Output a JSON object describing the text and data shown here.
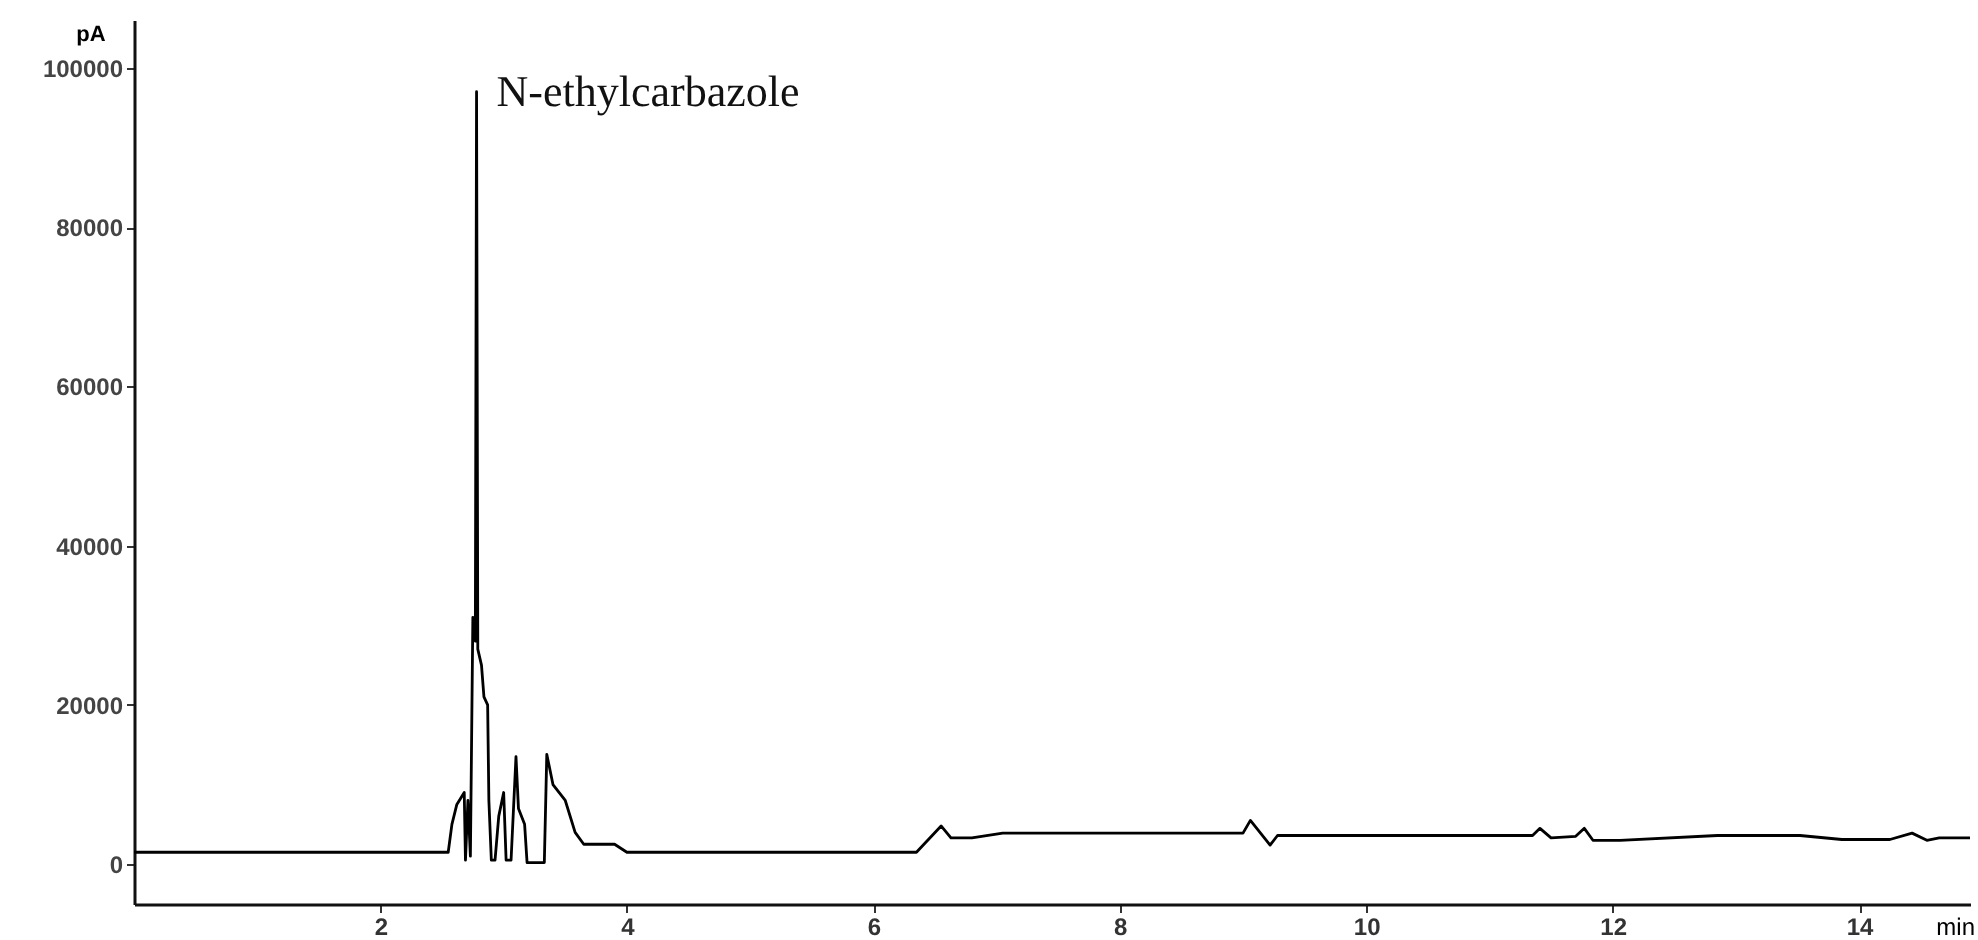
{
  "chart_data": {
    "type": "line",
    "xlabel": "min",
    "ylabel": "pA",
    "x": [
      0,
      2.55,
      2.58,
      2.62,
      2.66,
      2.68,
      2.69,
      2.71,
      2.73,
      2.75,
      2.77,
      2.78,
      2.79,
      2.82,
      2.84,
      2.87,
      2.88,
      2.9,
      2.93,
      2.96,
      3.0,
      3.02,
      3.06,
      3.1,
      3.12,
      3.17,
      3.19,
      3.33,
      3.35,
      3.4,
      3.5,
      3.58,
      3.65,
      3.9,
      4.0,
      6.35,
      6.55,
      6.63,
      6.8,
      7.05,
      9.0,
      9.06,
      9.22,
      9.28,
      11.35,
      11.41,
      11.5,
      11.7,
      11.77,
      11.84,
      12.06,
      12.85,
      13.52,
      13.86,
      14.25,
      14.43,
      14.55,
      14.65,
      14.9
    ],
    "series": [
      {
        "color": "#000000",
        "values": [
          1500,
          1500,
          5000,
          7500,
          8500,
          9000,
          500,
          8000,
          1000,
          31000,
          28000,
          97000,
          27000,
          25000,
          21000,
          20000,
          8000,
          500,
          500,
          6000,
          9000,
          500,
          500,
          13500,
          7000,
          5000,
          200,
          200,
          13800,
          10000,
          8000,
          4000,
          2500,
          2500,
          1500,
          1500,
          4800,
          3300,
          3300,
          3900,
          3900,
          5500,
          2400,
          3600,
          3600,
          4500,
          3300,
          3500,
          4500,
          3000,
          3000,
          3600,
          3600,
          3100,
          3100,
          3900,
          3000,
          3300,
          3300
        ]
      }
    ],
    "xlim": [
      0,
      14.9
    ],
    "xticks": [
      2,
      4,
      6,
      8,
      10,
      12,
      14
    ],
    "ylim": [
      -5000,
      106000
    ],
    "yticks": [
      0,
      20000,
      40000,
      60000,
      80000,
      100000
    ],
    "annotations": [
      {
        "text": "N-ethylcarbazole",
        "x": 2.78,
        "y": 97000
      }
    ],
    "grid": false,
    "marker": "none",
    "line_style": "solid"
  }
}
